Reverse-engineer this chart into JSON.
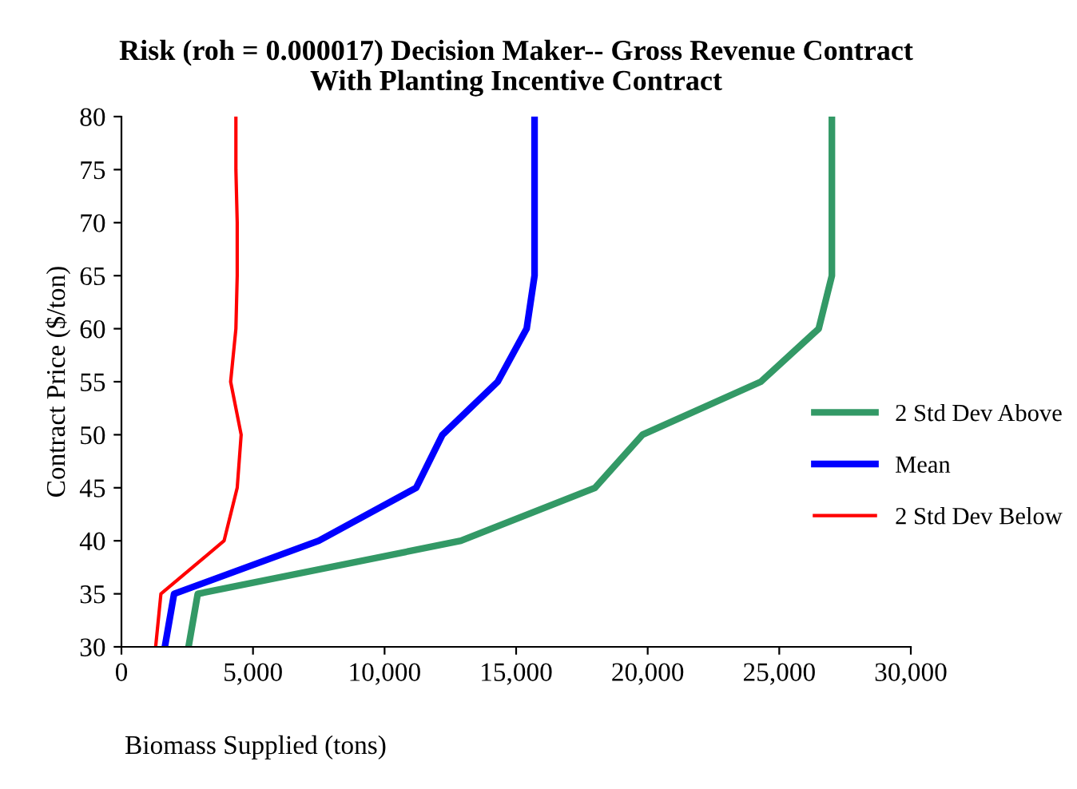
{
  "chart_data": {
    "type": "line",
    "title": "Risk (roh = 0.000017) Decision Maker-- Gross Revenue Contract\nWith Planting Incentive Contract",
    "xlabel": "Biomass Supplied (tons)",
    "ylabel": "Contract Price ($/ton)",
    "series": [
      {
        "name": "2 Std Dev Above",
        "color": "#339966",
        "x": [
          2550,
          2900,
          12900,
          18000,
          19800,
          24300,
          26500,
          27000,
          27000,
          27000,
          27000
        ],
        "values": [
          30,
          35,
          40,
          45,
          50,
          55,
          60,
          65,
          70,
          75,
          80
        ]
      },
      {
        "name": "Mean",
        "color": "#0000ff",
        "x": [
          1650,
          2000,
          7500,
          11200,
          12200,
          14300,
          15400,
          15700,
          15700,
          15700,
          15700
        ],
        "values": [
          30,
          35,
          40,
          45,
          50,
          55,
          60,
          65,
          70,
          75,
          80
        ]
      },
      {
        "name": "2 Std Dev Below",
        "color": "#ff0000",
        "x": [
          1300,
          1500,
          3900,
          4400,
          4550,
          4150,
          4350,
          4400,
          4400,
          4350,
          4350
        ],
        "values": [
          30,
          35,
          40,
          45,
          50,
          55,
          60,
          65,
          70,
          75,
          80
        ]
      }
    ],
    "xlim": [
      0,
      30000
    ],
    "xticks": [
      {
        "value": 0,
        "label": "0"
      },
      {
        "value": 5000,
        "label": "5,000"
      },
      {
        "value": 10000,
        "label": "10,000"
      },
      {
        "value": 15000,
        "label": "15,000"
      },
      {
        "value": 20000,
        "label": "20,000"
      },
      {
        "value": 25000,
        "label": "25,000"
      },
      {
        "value": 30000,
        "label": "30,000"
      }
    ],
    "ylim": [
      30,
      80
    ],
    "yticks": [
      30,
      35,
      40,
      45,
      50,
      55,
      60,
      65,
      70,
      75,
      80
    ],
    "grid": false,
    "legend": "right",
    "marker": "none",
    "line_style": "solid"
  }
}
